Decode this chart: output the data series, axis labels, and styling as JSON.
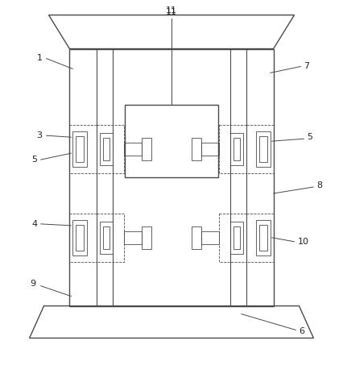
{
  "bg_color": "#ffffff",
  "line_color": "#4a4a4a",
  "lw_main": 1.0,
  "lw_thin": 0.6,
  "fig_width": 4.26,
  "fig_height": 4.69,
  "dpi": 100
}
